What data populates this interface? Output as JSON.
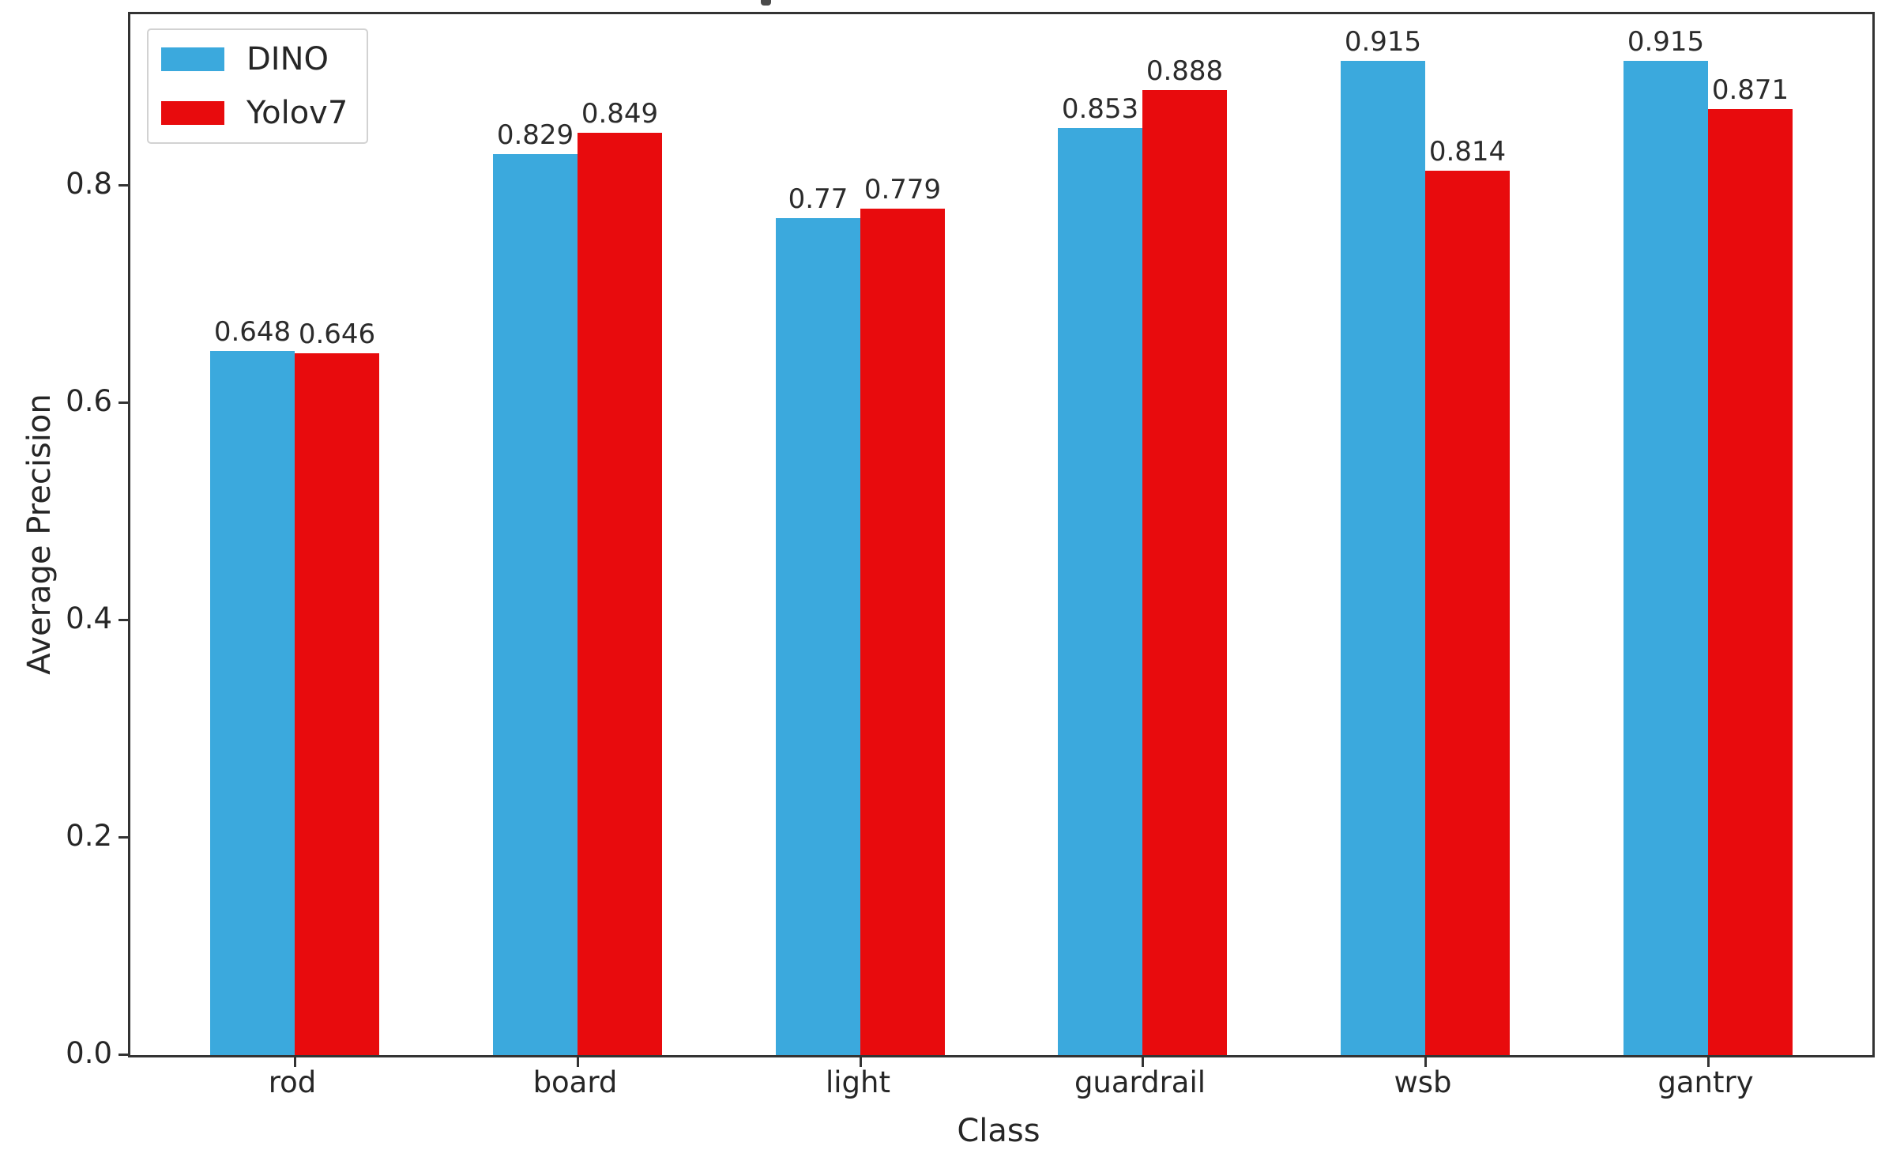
{
  "chart_data": {
    "type": "bar",
    "title": "",
    "xlabel": "Class",
    "ylabel": "Average Precision",
    "categories": [
      "rod",
      "board",
      "light",
      "guardrail",
      "wsb",
      "gantry"
    ],
    "series": [
      {
        "name": "DINO",
        "color": "#3BA9DD",
        "values": [
          0.648,
          0.829,
          0.77,
          0.853,
          0.915,
          0.915
        ],
        "value_labels": [
          "0.648",
          "0.829",
          "0.77",
          "0.853",
          "0.915",
          "0.915"
        ]
      },
      {
        "name": "Yolov7",
        "color": "#E80B0D",
        "values": [
          0.646,
          0.849,
          0.779,
          0.888,
          0.814,
          0.871
        ],
        "value_labels": [
          "0.646",
          "0.849",
          "0.779",
          "0.888",
          "0.814",
          "0.871"
        ]
      }
    ],
    "yticks": [
      0.0,
      0.2,
      0.4,
      0.6,
      0.8
    ],
    "ytick_labels": [
      "0.0",
      "0.2",
      "0.4",
      "0.6",
      "0.8"
    ],
    "ylim": [
      0,
      0.958
    ],
    "grid": false,
    "legend_position": "upper-left",
    "bar_value_label_color": "#2b2b2b",
    "axis_color": "#333333"
  }
}
